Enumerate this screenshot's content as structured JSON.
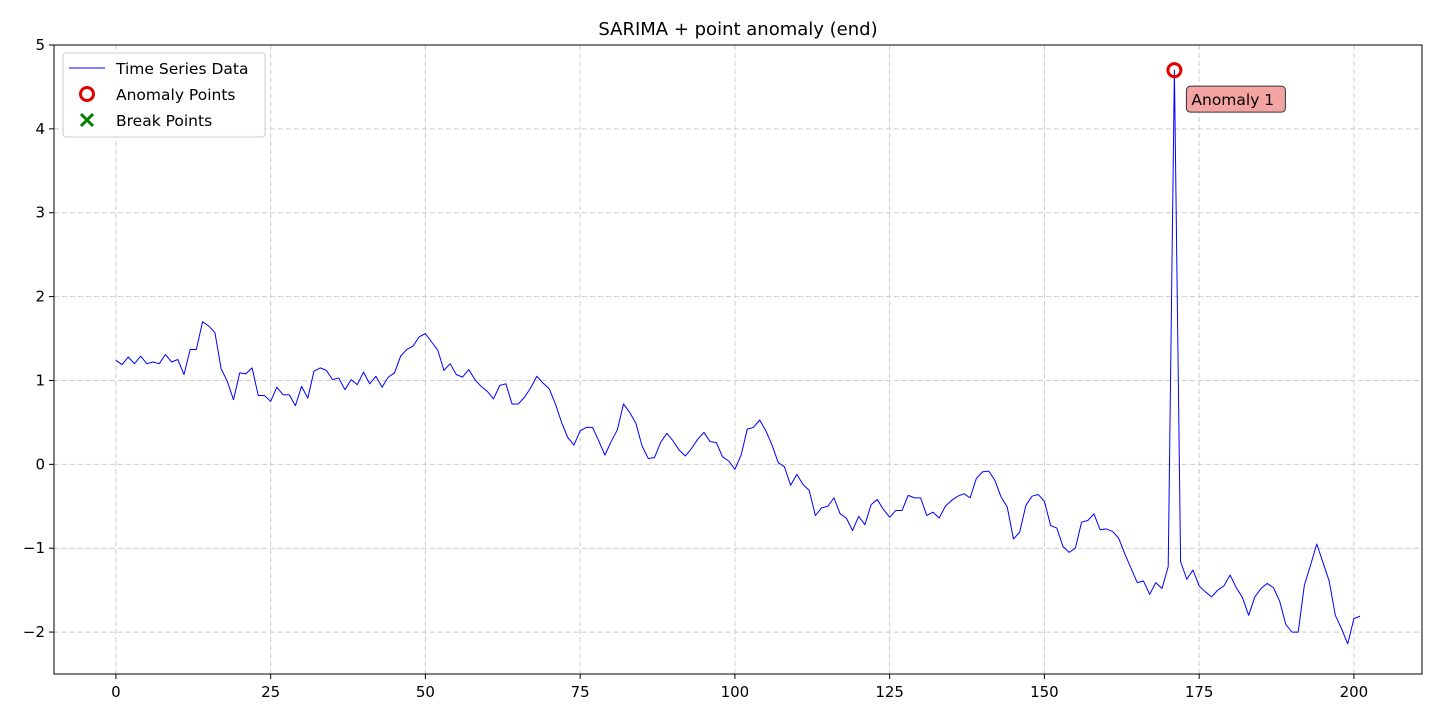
{
  "chart_data": {
    "type": "line",
    "title": "SARIMA + point anomaly (end)",
    "xlabel": "",
    "ylabel": "",
    "xlim": [
      -10,
      211
    ],
    "ylim": [
      -2.5,
      5
    ],
    "xticks": [
      0,
      25,
      50,
      75,
      100,
      125,
      150,
      175,
      200
    ],
    "yticks": [
      -2,
      -1,
      0,
      1,
      2,
      3,
      4,
      5
    ],
    "grid": true,
    "legend_position": "top-left",
    "legend": [
      {
        "label": "Time Series Data",
        "marker": "line",
        "color": "#0000ff"
      },
      {
        "label": "Anomaly Points",
        "marker": "circle",
        "color": "#e00000"
      },
      {
        "label": "Break Points",
        "marker": "x",
        "color": "#008000"
      }
    ],
    "series": [
      {
        "name": "Time Series Data",
        "color": "#0000ff",
        "x_start": 0,
        "values": [
          1.24,
          1.19,
          1.28,
          1.2,
          1.29,
          1.2,
          1.22,
          1.2,
          1.31,
          1.22,
          1.25,
          1.07,
          1.37,
          1.37,
          1.7,
          1.65,
          1.57,
          1.14,
          0.99,
          0.77,
          1.09,
          1.08,
          1.15,
          0.82,
          0.82,
          0.75,
          0.92,
          0.83,
          0.83,
          0.7,
          0.93,
          0.79,
          1.11,
          1.15,
          1.12,
          1.01,
          1.03,
          0.89,
          1.01,
          0.95,
          1.1,
          0.96,
          1.05,
          0.92,
          1.04,
          1.09,
          1.29,
          1.37,
          1.41,
          1.52,
          1.56,
          1.46,
          1.36,
          1.12,
          1.2,
          1.07,
          1.04,
          1.13,
          1.01,
          0.93,
          0.87,
          0.78,
          0.94,
          0.96,
          0.72,
          0.72,
          0.8,
          0.91,
          1.05,
          0.97,
          0.9,
          0.72,
          0.5,
          0.32,
          0.23,
          0.4,
          0.44,
          0.44,
          0.28,
          0.11,
          0.27,
          0.41,
          0.72,
          0.62,
          0.49,
          0.22,
          0.07,
          0.08,
          0.26,
          0.37,
          0.28,
          0.17,
          0.1,
          0.19,
          0.3,
          0.38,
          0.27,
          0.26,
          0.09,
          0.04,
          -0.06,
          0.11,
          0.42,
          0.44,
          0.53,
          0.4,
          0.23,
          0.02,
          -0.03,
          -0.25,
          -0.12,
          -0.24,
          -0.31,
          -0.61,
          -0.52,
          -0.5,
          -0.4,
          -0.59,
          -0.64,
          -0.79,
          -0.62,
          -0.72,
          -0.48,
          -0.42,
          -0.54,
          -0.63,
          -0.55,
          -0.55,
          -0.37,
          -0.4,
          -0.4,
          -0.61,
          -0.57,
          -0.64,
          -0.5,
          -0.43,
          -0.38,
          -0.35,
          -0.4,
          -0.17,
          -0.09,
          -0.08,
          -0.19,
          -0.39,
          -0.51,
          -0.89,
          -0.81,
          -0.49,
          -0.38,
          -0.36,
          -0.44,
          -0.73,
          -0.76,
          -0.98,
          -1.05,
          -1.0,
          -0.69,
          -0.67,
          -0.59,
          -0.78,
          -0.77,
          -0.8,
          -0.88,
          -1.07,
          -1.24,
          -1.41,
          -1.39,
          -1.55,
          -1.41,
          -1.48,
          -1.22,
          4.7,
          -1.16,
          -1.37,
          -1.26,
          -1.45,
          -1.52,
          -1.58,
          -1.5,
          -1.45,
          -1.32,
          -1.47,
          -1.59,
          -1.8,
          -1.58,
          -1.48,
          -1.42,
          -1.47,
          -1.63,
          -1.91,
          -2.0,
          -2.0,
          -1.44,
          -1.2,
          -0.95,
          -1.17,
          -1.39,
          -1.8,
          -1.96,
          -2.14,
          -1.84,
          -1.81
        ]
      }
    ],
    "anomaly_points": [
      {
        "x": 171,
        "y": 4.7,
        "label": "Anomaly 1"
      }
    ],
    "break_points": []
  }
}
